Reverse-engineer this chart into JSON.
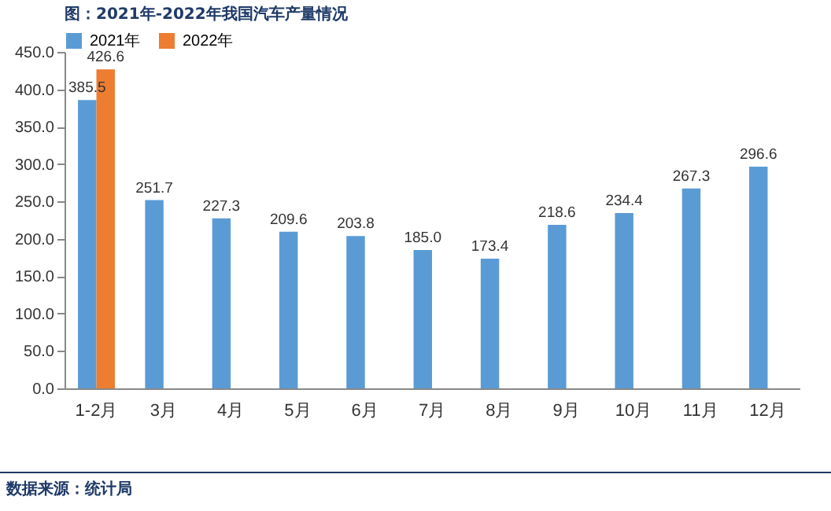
{
  "chart_data": {
    "type": "bar",
    "title": "图：2021年-2022年我国汽车产量情况",
    "categories": [
      "1-2月",
      "3月",
      "4月",
      "5月",
      "6月",
      "7月",
      "8月",
      "9月",
      "10月",
      "11月",
      "12月"
    ],
    "series": [
      {
        "name": "2021年",
        "color": "#5b9bd5",
        "values": [
          385.5,
          251.7,
          227.3,
          209.6,
          203.8,
          185.0,
          173.4,
          218.6,
          234.4,
          267.3,
          296.6
        ],
        "value_labels": [
          "385.5",
          "251.7",
          "227.3",
          "209.6",
          "203.8",
          "185.0",
          "173.4",
          "218.6",
          "234.4",
          "267.3",
          "296.6"
        ]
      },
      {
        "name": "2022年",
        "color": "#ed7d31",
        "values": [
          426.6,
          null,
          null,
          null,
          null,
          null,
          null,
          null,
          null,
          null,
          null
        ],
        "value_labels": [
          "426.6",
          null,
          null,
          null,
          null,
          null,
          null,
          null,
          null,
          null,
          null
        ]
      }
    ],
    "ylim": [
      0,
      450
    ],
    "yticks": [
      {
        "value": 0,
        "label": "0.0"
      },
      {
        "value": 50,
        "label": "50.0"
      },
      {
        "value": 100,
        "label": "100.0"
      },
      {
        "value": 150,
        "label": "150.0"
      },
      {
        "value": 200,
        "label": "200.0"
      },
      {
        "value": 250,
        "label": "250.0"
      },
      {
        "value": 300,
        "label": "300.0"
      },
      {
        "value": 350,
        "label": "350.0"
      },
      {
        "value": 400,
        "label": "400.0"
      },
      {
        "value": 450,
        "label": "450.0"
      }
    ],
    "legend": "top",
    "annotations": [
      "数据来源：统计局"
    ]
  }
}
